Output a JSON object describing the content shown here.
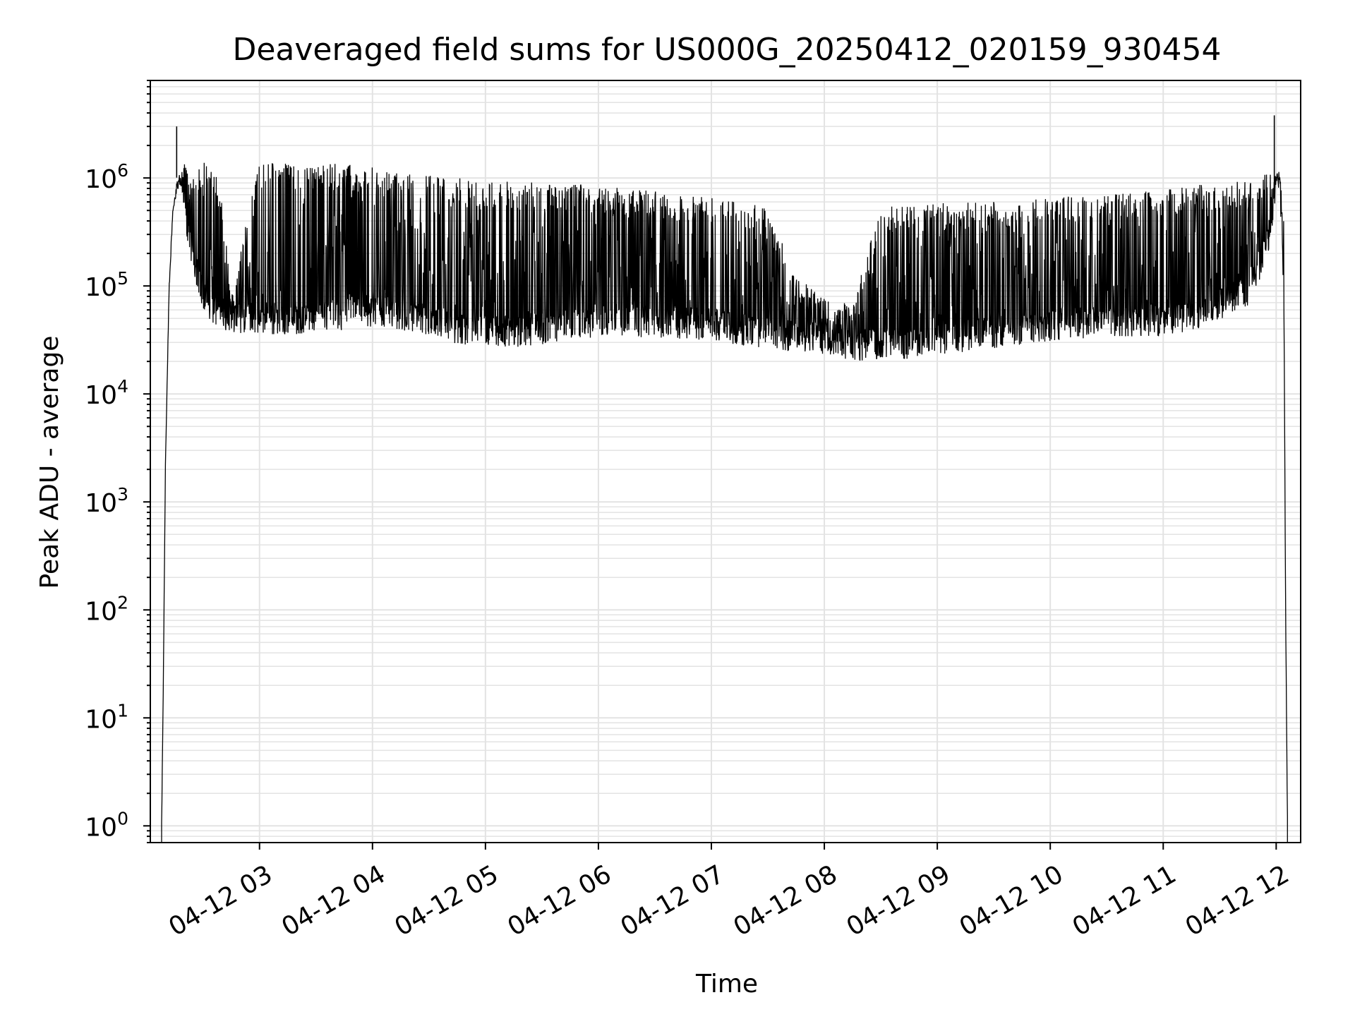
{
  "chart_data": {
    "type": "line",
    "title": "Deaveraged field sums for US000G_20250412_020159_930454",
    "xlabel": "Time",
    "ylabel": "Peak ADU - average",
    "y_scale": "log",
    "ylim": [
      0.7,
      8000000
    ],
    "xlim": [
      "2025-04-12 02:02",
      "2025-04-12 12:13"
    ],
    "x_ticks": [
      "2025-04-12 03:00",
      "2025-04-12 04:00",
      "2025-04-12 05:00",
      "2025-04-12 06:00",
      "2025-04-12 07:00",
      "2025-04-12 08:00",
      "2025-04-12 09:00",
      "2025-04-12 10:00",
      "2025-04-12 11:00",
      "2025-04-12 12:00"
    ],
    "x_tick_labels": [
      "04-12 03",
      "04-12 04",
      "04-12 05",
      "04-12 06",
      "04-12 07",
      "04-12 08",
      "04-12 09",
      "04-12 10",
      "04-12 11",
      "04-12 12"
    ],
    "y_tick_values": [
      1,
      10,
      100,
      1000,
      10000,
      100000,
      1000000
    ],
    "y_tick_labels": [
      {
        "base": "10",
        "exp": "0"
      },
      {
        "base": "10",
        "exp": "1"
      },
      {
        "base": "10",
        "exp": "2"
      },
      {
        "base": "10",
        "exp": "3"
      },
      {
        "base": "10",
        "exp": "4"
      },
      {
        "base": "10",
        "exp": "5"
      },
      {
        "base": "10",
        "exp": "6"
      }
    ],
    "grid": true,
    "line_color": "#000000",
    "grid_color": "#e3e3e3",
    "series": [
      {
        "x": [
          "2025-04-12 02:08",
          "2025-04-12 02:09",
          "2025-04-12 02:10",
          "2025-04-12 02:12",
          "2025-04-12 02:14",
          "2025-04-12 02:16",
          "2025-04-12 02:18",
          "2025-04-12 02:19",
          "2025-04-12 02:20",
          "2025-04-12 02:22",
          "2025-04-12 02:25",
          "2025-04-12 02:28",
          "2025-04-12 02:31",
          "2025-04-12 02:33",
          "2025-04-12 02:35",
          "2025-04-12 02:38",
          "2025-04-12 02:40",
          "2025-04-12 02:45",
          "2025-04-12 03:00",
          "2025-04-12 03:15",
          "2025-04-12 03:30",
          "2025-04-12 03:45",
          "2025-04-12 04:00",
          "2025-04-12 04:15",
          "2025-04-12 04:30",
          "2025-04-12 04:45",
          "2025-04-12 05:00",
          "2025-04-12 05:15",
          "2025-04-12 05:30",
          "2025-04-12 05:45",
          "2025-04-12 06:00",
          "2025-04-12 06:15",
          "2025-04-12 06:30",
          "2025-04-12 06:45",
          "2025-04-12 07:00",
          "2025-04-12 07:15",
          "2025-04-12 07:30",
          "2025-04-12 07:45",
          "2025-04-12 08:00",
          "2025-04-12 08:15",
          "2025-04-12 08:30",
          "2025-04-12 08:45",
          "2025-04-12 09:00",
          "2025-04-12 09:15",
          "2025-04-12 09:30",
          "2025-04-12 09:45",
          "2025-04-12 10:00",
          "2025-04-12 10:15",
          "2025-04-12 10:30",
          "2025-04-12 10:45",
          "2025-04-12 11:00",
          "2025-04-12 11:15",
          "2025-04-12 11:30",
          "2025-04-12 11:45",
          "2025-04-12 11:55",
          "2025-04-12 11:59",
          "2025-04-12 12:00",
          "2025-04-12 12:02",
          "2025-04-12 12:04",
          "2025-04-12 12:05",
          "2025-04-12 12:06"
        ],
        "min": [
          1,
          30,
          2000,
          100000,
          500000,
          800000,
          900000,
          700000,
          500000,
          300000,
          150000,
          90000,
          70000,
          60000,
          55000,
          50000,
          50000,
          45000,
          45000,
          42000,
          45000,
          48000,
          52000,
          48000,
          42000,
          35000,
          35000,
          33000,
          35000,
          38000,
          42000,
          42000,
          40000,
          40000,
          38000,
          35000,
          32000,
          30000,
          28000,
          25000,
          25000,
          26000,
          28000,
          30000,
          32000,
          35000,
          38000,
          40000,
          40000,
          42000,
          42000,
          45000,
          60000,
          80000,
          200000,
          600000,
          900000,
          800000,
          100000,
          100,
          1
        ],
        "max": [
          1,
          30,
          2000,
          100000,
          500000,
          900000,
          1100000,
          1300000,
          1400000,
          1400000,
          1300000,
          1350000,
          1400000,
          1200000,
          1200000,
          1000000,
          600000,
          90000,
          1400000,
          1400000,
          1400000,
          1350000,
          1250000,
          1100000,
          1050000,
          1000000,
          950000,
          930000,
          900000,
          880000,
          850000,
          800000,
          750000,
          700000,
          650000,
          600000,
          550000,
          120000,
          80000,
          70000,
          550000,
          550000,
          580000,
          600000,
          600000,
          620000,
          650000,
          700000,
          720000,
          750000,
          800000,
          850000,
          900000,
          950000,
          1100000,
          1300000,
          1200000,
          1100000,
          500000,
          100,
          1
        ]
      }
    ],
    "spikes": [
      {
        "x": "2025-04-12 02:16",
        "y": 3000000
      },
      {
        "x": "2025-04-12 11:59",
        "y": 3800000
      }
    ]
  }
}
